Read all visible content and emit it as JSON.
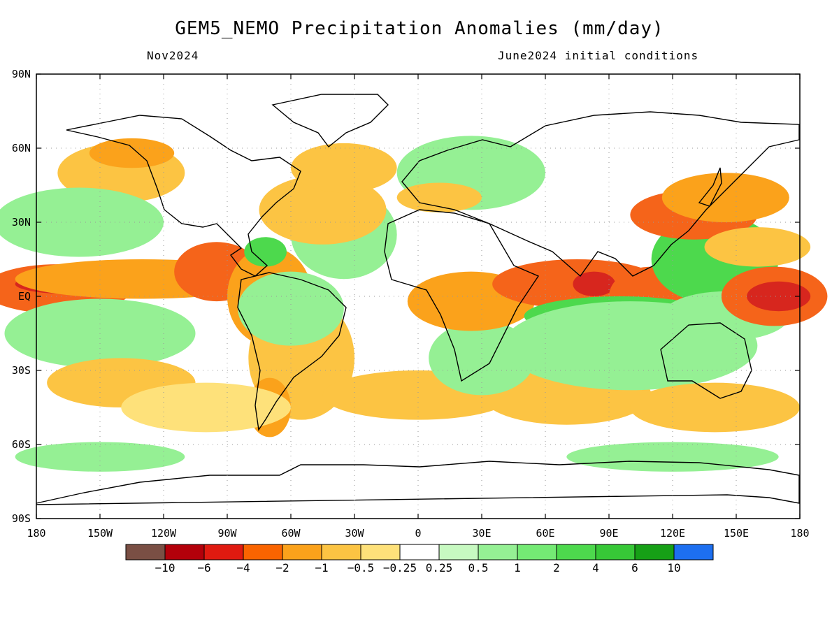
{
  "title": "GEM5_NEMO Precipitation Anomalies (mm/day)",
  "subtitle_left": "Nov2024",
  "subtitle_right": "June2024 initial conditions",
  "map": {
    "lat_labels": [
      "90N",
      "60N",
      "30N",
      "EQ",
      "30S",
      "60S",
      "90S"
    ],
    "lon_labels": [
      "180",
      "150W",
      "120W",
      "90W",
      "60W",
      "30W",
      "0",
      "30E",
      "60E",
      "90E",
      "120E",
      "150E",
      "180"
    ],
    "colors": {
      "strong_dry": "#d7261e",
      "dry": "#f5641a",
      "mod_dry": "#fba21b",
      "light_dry": "#fcc443",
      "weak_dry": "#fee17a",
      "weak_wet": "#c7f9c1",
      "light_wet": "#95f094",
      "wet": "#4dd94d"
    },
    "patches": [
      {
        "kind": "dry",
        "lon": -170,
        "lat": 3,
        "w": 35,
        "h": 10
      },
      {
        "kind": "strong_dry",
        "lon": -165,
        "lat": 5,
        "w": 25,
        "h": 4
      },
      {
        "kind": "mod_dry",
        "lon": -130,
        "lat": 7,
        "w": 60,
        "h": 8
      },
      {
        "kind": "dry",
        "lon": -95,
        "lat": 10,
        "w": 20,
        "h": 12
      },
      {
        "kind": "mod_dry",
        "lon": -70,
        "lat": 0,
        "w": 20,
        "h": 20
      },
      {
        "kind": "light_dry",
        "lon": -55,
        "lat": -25,
        "w": 25,
        "h": 25
      },
      {
        "kind": "mod_dry",
        "lon": -70,
        "lat": -45,
        "w": 10,
        "h": 12
      },
      {
        "kind": "light_wet",
        "lon": -60,
        "lat": -5,
        "w": 25,
        "h": 15
      },
      {
        "kind": "light_wet",
        "lon": -35,
        "lat": 25,
        "w": 25,
        "h": 18
      },
      {
        "kind": "wet",
        "lon": -72,
        "lat": 18,
        "w": 10,
        "h": 6
      },
      {
        "kind": "light_dry",
        "lon": -45,
        "lat": 35,
        "w": 30,
        "h": 14
      },
      {
        "kind": "light_dry",
        "lon": -35,
        "lat": 52,
        "w": 25,
        "h": 10
      },
      {
        "kind": "light_dry",
        "lon": -140,
        "lat": 50,
        "w": 30,
        "h": 12
      },
      {
        "kind": "mod_dry",
        "lon": -135,
        "lat": 58,
        "w": 20,
        "h": 6
      },
      {
        "kind": "light_wet",
        "lon": -160,
        "lat": 30,
        "w": 40,
        "h": 14
      },
      {
        "kind": "light_wet",
        "lon": -150,
        "lat": -15,
        "w": 45,
        "h": 14
      },
      {
        "kind": "light_dry",
        "lon": -140,
        "lat": -35,
        "w": 35,
        "h": 10
      },
      {
        "kind": "weak_dry",
        "lon": -100,
        "lat": -45,
        "w": 40,
        "h": 10
      },
      {
        "kind": "light_dry",
        "lon": 0,
        "lat": -40,
        "w": 45,
        "h": 10
      },
      {
        "kind": "light_dry",
        "lon": 70,
        "lat": -40,
        "w": 40,
        "h": 12
      },
      {
        "kind": "light_wet",
        "lon": 30,
        "lat": -25,
        "w": 25,
        "h": 15
      },
      {
        "kind": "light_wet",
        "lon": 25,
        "lat": 50,
        "w": 35,
        "h": 15
      },
      {
        "kind": "light_dry",
        "lon": 10,
        "lat": 40,
        "w": 20,
        "h": 6
      },
      {
        "kind": "mod_dry",
        "lon": 25,
        "lat": -2,
        "w": 30,
        "h": 12
      },
      {
        "kind": "dry",
        "lon": 75,
        "lat": 5,
        "w": 40,
        "h": 10
      },
      {
        "kind": "strong_dry",
        "lon": 83,
        "lat": 5,
        "w": 10,
        "h": 5
      },
      {
        "kind": "dry",
        "lon": 110,
        "lat": 0,
        "w": 20,
        "h": 12
      },
      {
        "kind": "wet",
        "lon": 95,
        "lat": -8,
        "w": 45,
        "h": 8
      },
      {
        "kind": "light_wet",
        "lon": 100,
        "lat": -20,
        "w": 60,
        "h": 18
      },
      {
        "kind": "wet",
        "lon": 140,
        "lat": 15,
        "w": 30,
        "h": 18
      },
      {
        "kind": "light_wet",
        "lon": 145,
        "lat": -8,
        "w": 30,
        "h": 10
      },
      {
        "kind": "dry",
        "lon": 130,
        "lat": 33,
        "w": 30,
        "h": 10
      },
      {
        "kind": "mod_dry",
        "lon": 145,
        "lat": 40,
        "w": 30,
        "h": 10
      },
      {
        "kind": "dry",
        "lon": 168,
        "lat": 0,
        "w": 25,
        "h": 12
      },
      {
        "kind": "strong_dry",
        "lon": 170,
        "lat": 0,
        "w": 15,
        "h": 6
      },
      {
        "kind": "light_dry",
        "lon": 160,
        "lat": 20,
        "w": 25,
        "h": 8
      },
      {
        "kind": "light_dry",
        "lon": 140,
        "lat": -45,
        "w": 40,
        "h": 10
      },
      {
        "kind": "light_wet",
        "lon": -150,
        "lat": -65,
        "w": 40,
        "h": 6
      },
      {
        "kind": "light_wet",
        "lon": 120,
        "lat": -65,
        "w": 50,
        "h": 6
      }
    ]
  },
  "colorbar": {
    "colors": [
      "#7a4f44",
      "#b3000a",
      "#e01a10",
      "#fa6400",
      "#fba21b",
      "#fcc443",
      "#fee17a",
      "#ffffff",
      "#c7f9c1",
      "#95f094",
      "#74ea74",
      "#4dd94d",
      "#37c837",
      "#16a016",
      "#1d6ff0"
    ],
    "labels": [
      "−10",
      "−6",
      "−4",
      "−2",
      "−1",
      "−0.5",
      "−0.25",
      "0.25",
      "0.5",
      "1",
      "2",
      "4",
      "6",
      "10"
    ]
  }
}
